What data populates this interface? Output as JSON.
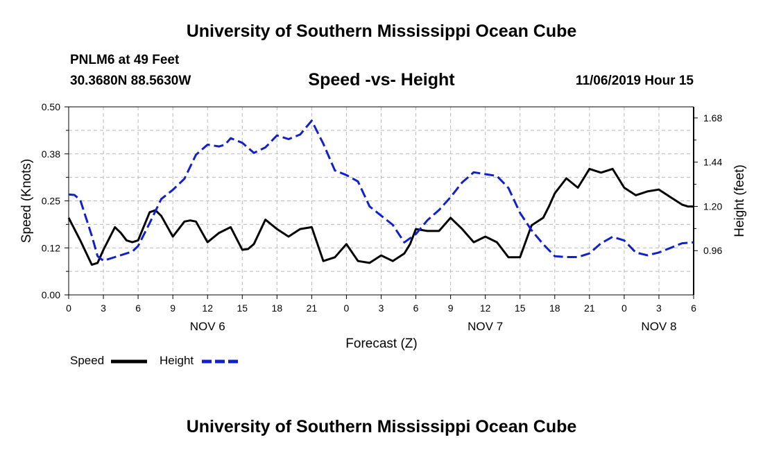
{
  "header": {
    "title_top": "University of Southern Mississippi Ocean Cube",
    "title_bottom": "University of Southern Mississippi Ocean Cube",
    "station": "PNLM6 at 49 Feet",
    "coords": "30.3680N 88.5630W",
    "chart_title": "Speed -vs- Height",
    "timestamp": "11/06/2019 Hour 15"
  },
  "legend": {
    "speed_label": "Speed",
    "height_label": "Height"
  },
  "colors": {
    "speed": "#000000",
    "height": "#1020d0",
    "grid": "#b8b8b8"
  },
  "chart_data": {
    "type": "line",
    "title": "Speed -vs- Height",
    "xlabel": "Forecast (Z)",
    "ylabel": "Speed (Knots)",
    "y2label": "Height (feet)",
    "xlim": [
      0,
      54
    ],
    "ylim": [
      0,
      0.5
    ],
    "y2lim": [
      0.72,
      1.74
    ],
    "yticks": [
      0.0,
      0.125,
      0.25,
      0.375,
      0.5
    ],
    "ytick_labels": [
      "0.00",
      "0.12",
      "0.25",
      "0.38",
      "0.50"
    ],
    "y2ticks": [
      0.96,
      1.2,
      1.44,
      1.68
    ],
    "y2tick_labels": [
      "0.96",
      "1.20",
      "1.44",
      "1.68"
    ],
    "xticks": [
      0,
      3,
      6,
      9,
      12,
      15,
      18,
      21,
      24,
      27,
      30,
      33,
      36,
      39,
      42,
      45,
      48,
      51,
      54
    ],
    "xtick_labels": [
      "0",
      "3",
      "6",
      "9",
      "12",
      "15",
      "18",
      "21",
      "0",
      "3",
      "6",
      "9",
      "12",
      "15",
      "18",
      "21",
      "0",
      "3",
      "6"
    ],
    "day_labels": [
      {
        "x": 12,
        "label": "NOV 6"
      },
      {
        "x": 36,
        "label": "NOV 7"
      },
      {
        "x": 51,
        "label": "NOV 8"
      }
    ],
    "grid": true,
    "legend_position": "bottom-left",
    "series": [
      {
        "name": "Speed",
        "axis": "left",
        "style": "solid",
        "x": [
          0,
          1,
          2,
          2.5,
          3,
          4,
          4.5,
          5,
          5.5,
          6,
          7,
          7.5,
          8,
          9,
          10,
          10.5,
          11,
          12,
          13,
          14,
          15,
          15.5,
          16,
          17,
          18,
          19,
          20,
          21,
          22,
          23,
          24,
          25,
          26,
          27,
          28,
          29,
          29.5,
          30,
          31,
          32,
          33,
          34,
          35,
          36,
          37,
          38,
          39,
          40,
          41,
          41.5,
          42,
          43,
          44,
          44.5,
          45,
          46,
          47,
          48,
          49,
          50,
          51,
          52,
          53,
          53.5,
          54
        ],
        "y": [
          0.205,
          0.145,
          0.08,
          0.085,
          0.12,
          0.18,
          0.165,
          0.145,
          0.14,
          0.145,
          0.22,
          0.225,
          0.21,
          0.155,
          0.195,
          0.198,
          0.195,
          0.14,
          0.165,
          0.18,
          0.12,
          0.122,
          0.135,
          0.2,
          0.175,
          0.155,
          0.175,
          0.18,
          0.09,
          0.1,
          0.135,
          0.09,
          0.085,
          0.105,
          0.09,
          0.11,
          0.135,
          0.175,
          0.17,
          0.17,
          0.205,
          0.175,
          0.14,
          0.155,
          0.14,
          0.1,
          0.1,
          0.185,
          0.205,
          0.235,
          0.27,
          0.31,
          0.285,
          0.31,
          0.335,
          0.325,
          0.335,
          0.285,
          0.265,
          0.275,
          0.28,
          0.26,
          0.24,
          0.235,
          0.235
        ]
      },
      {
        "name": "Height",
        "axis": "right",
        "style": "dashed",
        "x": [
          0,
          0.5,
          1,
          2,
          2.5,
          3,
          4,
          5,
          5.5,
          6,
          7,
          8,
          9,
          10,
          11,
          12,
          13,
          13.5,
          14,
          15,
          16,
          17,
          18,
          19,
          20,
          21,
          22,
          23,
          24,
          25,
          26,
          27,
          28,
          29,
          30,
          31,
          32,
          33,
          34,
          35,
          36,
          37,
          38,
          39,
          40,
          41,
          42,
          43,
          44,
          45,
          46,
          47,
          48,
          49,
          50,
          51,
          52,
          53,
          54
        ],
        "y": [
          1.265,
          1.262,
          1.235,
          1.04,
          0.93,
          0.905,
          0.925,
          0.945,
          0.955,
          0.985,
          1.11,
          1.24,
          1.29,
          1.35,
          1.48,
          1.535,
          1.525,
          1.535,
          1.57,
          1.545,
          1.49,
          1.52,
          1.585,
          1.565,
          1.59,
          1.665,
          1.54,
          1.395,
          1.37,
          1.335,
          1.2,
          1.15,
          1.1,
          1.005,
          1.05,
          1.125,
          1.18,
          1.25,
          1.33,
          1.385,
          1.375,
          1.365,
          1.3,
          1.165,
          1.07,
          0.995,
          0.93,
          0.925,
          0.925,
          0.945,
          1.0,
          1.035,
          1.015,
          0.95,
          0.935,
          0.95,
          0.975,
          1.0,
          1.005
        ]
      }
    ]
  }
}
